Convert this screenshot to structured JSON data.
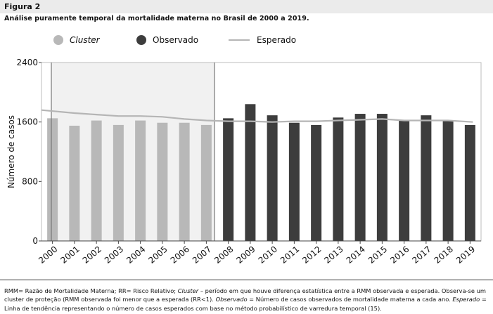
{
  "figure": {
    "label": "Figura 2",
    "title": "Análise puramente temporal da mortalidade materna no Brasil de 2000 a 2019."
  },
  "legend": {
    "cluster": "Cluster",
    "observado": "Observado",
    "esperado": "Esperado"
  },
  "colors": {
    "cluster": "#b8b8b8",
    "observado": "#3d3d3d",
    "esperado": "#b5b5b5",
    "cluster_region": "#f1f1f1",
    "header_band": "#ebebeb"
  },
  "chart_data": {
    "type": "bar",
    "ylabel": "Número de casos",
    "ylim": [
      0,
      2400
    ],
    "yticks": [
      0,
      800,
      1600,
      2400
    ],
    "categories": [
      "2000",
      "2001",
      "2002",
      "2003",
      "2004",
      "2005",
      "2006",
      "2007",
      "2008",
      "2009",
      "2010",
      "2011",
      "2012",
      "2013",
      "2014",
      "2015",
      "2016",
      "2017",
      "2018",
      "2019"
    ],
    "cluster_range": [
      "2000",
      "2007"
    ],
    "series": [
      {
        "name": "Observado",
        "type": "bar",
        "values": [
          1650,
          1550,
          1620,
          1560,
          1620,
          1590,
          1590,
          1560,
          1650,
          1840,
          1690,
          1590,
          1560,
          1660,
          1710,
          1710,
          1630,
          1690,
          1620,
          1560
        ]
      },
      {
        "name": "Esperado",
        "type": "line",
        "values": [
          1760,
          1720,
          1700,
          1680,
          1680,
          1670,
          1640,
          1620,
          1610,
          1610,
          1600,
          1610,
          1610,
          1620,
          1630,
          1640,
          1620,
          1620,
          1620,
          1600
        ]
      }
    ]
  },
  "footnote": {
    "part1": "RMM= Razão de Mortalidade Materna; RR= Risco Relativo; ",
    "cluster_term": "Cluster",
    "part2": " – período em que houve diferença estatística entre a RMM observada e esperada. Observa-se um cluster de proteção (RMM observada foi menor que a esperada (RR<1). ",
    "observado_term": "Observado",
    "part3": " = Número de casos observados de mortalidade materna a cada ano. ",
    "esperado_term": "Esperado",
    "part4": " = Linha de tendência representando o número de casos esperados com base no método probabilístico de varredura temporal (15)."
  }
}
